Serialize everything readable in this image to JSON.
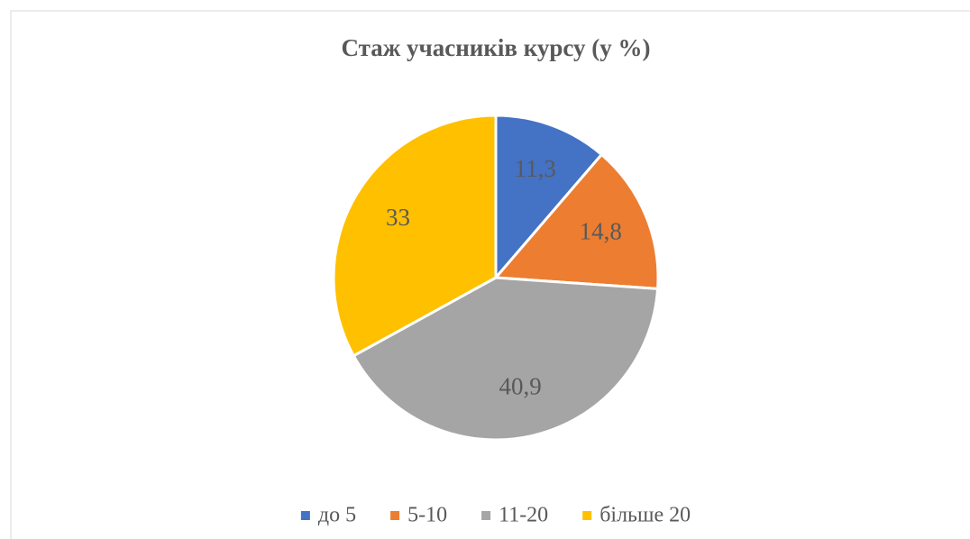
{
  "chart_data": {
    "type": "pie",
    "title": "Стаж учасників курсу (у %)",
    "categories": [
      "до 5",
      "5-10",
      "11-20",
      "більше 20"
    ],
    "values": [
      11.3,
      14.8,
      40.9,
      33
    ],
    "value_labels": [
      "11,3",
      "14,8",
      "40,9",
      "33"
    ],
    "colors": [
      "#4472c4",
      "#ed7d31",
      "#a5a5a5",
      "#ffc000"
    ],
    "legend": "bottom"
  }
}
